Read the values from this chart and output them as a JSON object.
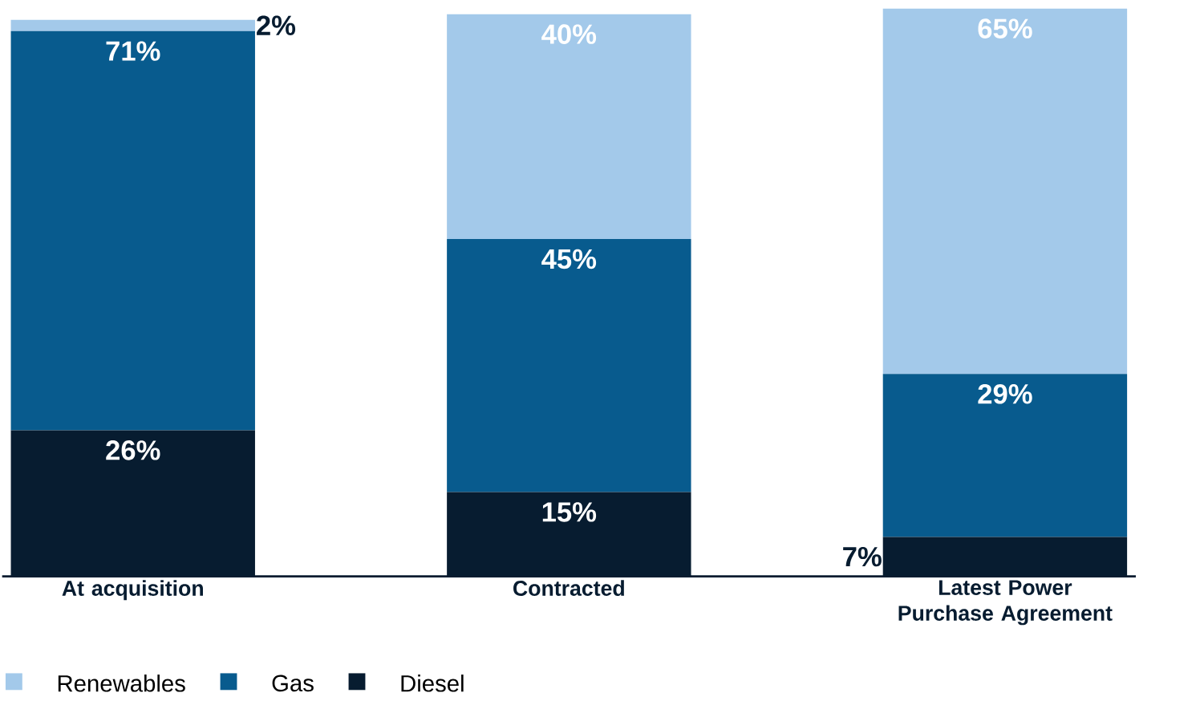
{
  "chart_data": {
    "type": "bar",
    "stacked": true,
    "categories": [
      "At acquisition",
      "Contracted",
      "Latest Power Purchase Agreement"
    ],
    "series": [
      {
        "name": "Diesel",
        "color": "#071c30",
        "values": [
          26,
          15,
          7
        ],
        "value_labels": [
          "26%",
          "15%",
          "7%"
        ]
      },
      {
        "name": "Gas",
        "color": "#085b8e",
        "values": [
          71,
          45,
          29
        ],
        "value_labels": [
          "71%",
          "45%",
          "29%"
        ]
      },
      {
        "name": "Renewables",
        "color": "#a3c9ea",
        "values": [
          2,
          40,
          65
        ],
        "value_labels": [
          "2%",
          "40%",
          "65%"
        ]
      }
    ],
    "legend": "bottom left"
  }
}
